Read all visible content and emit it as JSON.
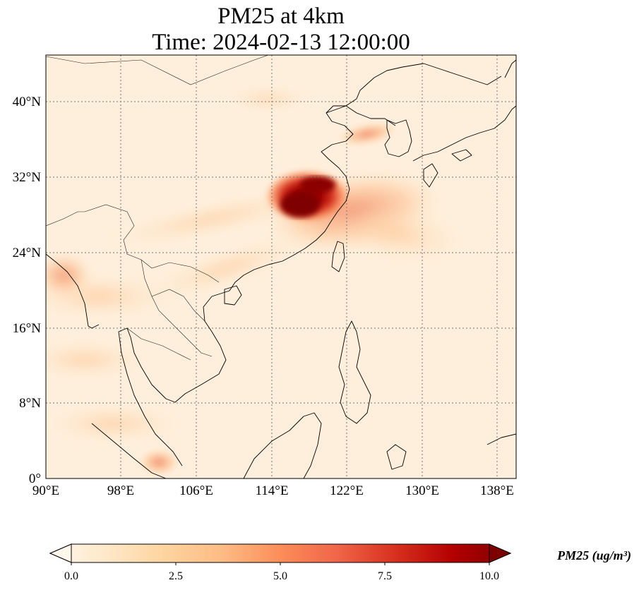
{
  "title": {
    "line1": "PM25 at 4km",
    "line2": "Time: 2024-02-13 12:00:00"
  },
  "map": {
    "lon_range": [
      90,
      140
    ],
    "lat_range": [
      0,
      45
    ],
    "lon_ticks": [
      "90°E",
      "98°E",
      "106°E",
      "114°E",
      "122°E",
      "130°E",
      "138°E"
    ],
    "lat_ticks": [
      "0°",
      "8°N",
      "16°N",
      "24°N",
      "32°N",
      "40°N"
    ],
    "gridlines": true,
    "colormap": "OrRd",
    "max_concentration_region": "east-central China (about 30°N, 117°E)"
  },
  "colorbar": {
    "label": "PM25 (ug/m³)",
    "ticks": [
      "0.0",
      "2.5",
      "5.0",
      "7.5",
      "10.0"
    ],
    "vmin": 0,
    "vmax": 10,
    "extend": "both",
    "colors": [
      "#fff7ec",
      "#fee8c8",
      "#fdd49e",
      "#fdbb84",
      "#fc8d59",
      "#ef6548",
      "#d7301f",
      "#b30000",
      "#7f0000"
    ]
  }
}
